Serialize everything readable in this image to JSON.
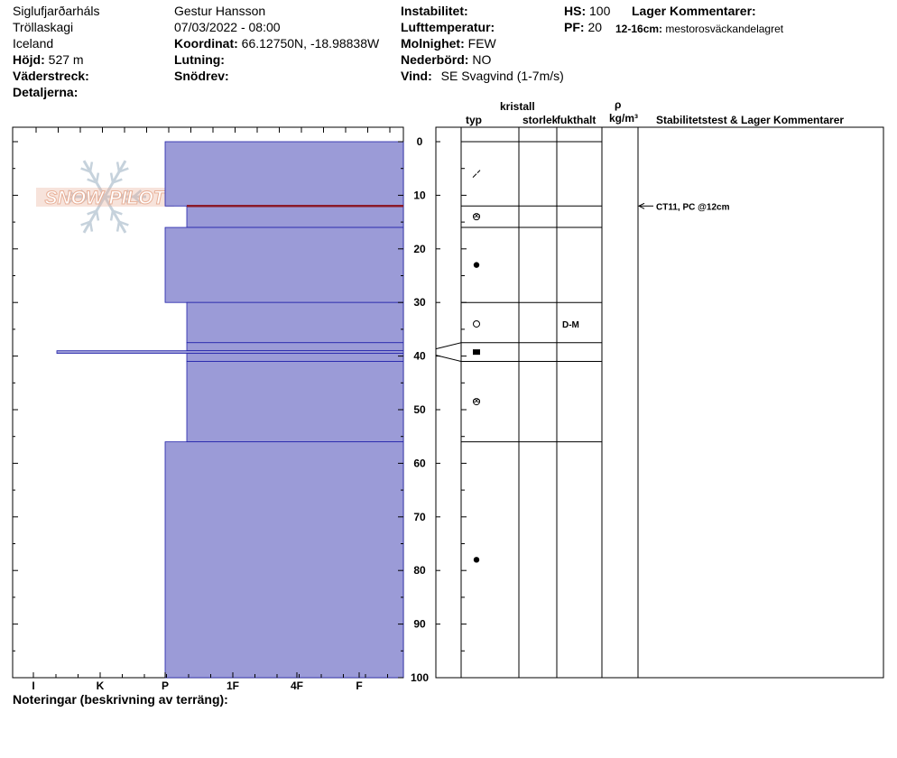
{
  "header": {
    "location": "Siglufjarðarháls",
    "region": "Tröllaskagi",
    "country": "Iceland",
    "elevation_label": "Höjd:",
    "elevation_value": "527 m",
    "aspect_label": "Väderstreck:",
    "details_label": "Detaljerna:",
    "observer": "Gestur Hansson",
    "datetime": "07/03/2022 - 08:00",
    "coordinates_label": "Koordinat:",
    "coordinates_value": "66.12750N, -18.98838W",
    "slope_label": "Lutning:",
    "wind_loading_label": "Snödrev:",
    "instability_label": "Instabilitet:",
    "air_temp_label": "Lufttemperatur:",
    "sky_label": "Molnighet:",
    "sky_value": "FEW",
    "precip_label": "Nederbörd:",
    "precip_value": "NO",
    "wind_label": "Vind:",
    "wind_value": "SE Svagvind (1-7m/s)",
    "hs_label": "HS:",
    "hs_value": "100",
    "pf_label": "PF:",
    "pf_value": "20",
    "layer_comments_label": "Lager Kommentarer:",
    "layer_comment_range": "12-16cm:",
    "layer_comment_text": "mestorosväckandelagret"
  },
  "logo": {
    "text": "SNOW PILOT"
  },
  "column_headers": {
    "crystal": "kristall",
    "type": "typ",
    "size": "storlek",
    "moisture": "fukthalt",
    "rho": "ρ",
    "density_unit": "kg/m³",
    "stability_comments": "Stabilitetstest & Lager Kommentarer"
  },
  "footer": {
    "notes_label": "Noteringar (beskrivning av terräng):"
  },
  "colors": {
    "layer_fill": "#9b9bd7",
    "layer_stroke": "#2222aa",
    "failure_line": "#8b1a2a",
    "logo_text": "#e8b098",
    "logo_flake": "#c6d2dc"
  },
  "chart_data": {
    "type": "snow_profile",
    "depth_axis": {
      "min": 0,
      "max": 100,
      "ticks": [
        0,
        10,
        20,
        30,
        40,
        50,
        60,
        70,
        80,
        90,
        100
      ],
      "direction": "down"
    },
    "hardness_axis": {
      "labels": [
        "I",
        "K",
        "P",
        "1F",
        "4F",
        "F"
      ]
    },
    "layers": [
      {
        "top": 0,
        "bottom": 12,
        "hardness": "P",
        "grain_icon": "decomposing-fragments-icon",
        "moisture": ""
      },
      {
        "top": 12,
        "bottom": 16,
        "hardness": "P+",
        "grain_icon": "surface-hoar-icon",
        "moisture": ""
      },
      {
        "top": 16,
        "bottom": 30,
        "hardness": "P",
        "grain_icon": "rounded-grains-icon",
        "moisture": ""
      },
      {
        "top": 30,
        "bottom": 37.5,
        "hardness": "P+",
        "grain_icon": "melt-forms-icon",
        "moisture": "D-M"
      },
      {
        "top": 37.5,
        "bottom": 39,
        "hardness": "P+",
        "grain_icon": "",
        "moisture": ""
      },
      {
        "top": 39,
        "bottom": 39.5,
        "hardness": "I+",
        "grain_icon": "ice-formation-icon",
        "moisture": ""
      },
      {
        "top": 39.5,
        "bottom": 41,
        "hardness": "P+",
        "grain_icon": "",
        "moisture": ""
      },
      {
        "top": 41,
        "bottom": 56,
        "hardness": "P+",
        "grain_icon": "depth-hoar-icon",
        "moisture": ""
      },
      {
        "top": 56,
        "bottom": 100,
        "hardness": "P",
        "grain_icon": "rounded-grains-icon",
        "moisture": ""
      }
    ],
    "failure_depth": 12,
    "stability_tests": [
      {
        "depth": 12,
        "label": "CT11, PC @12cm"
      }
    ]
  }
}
